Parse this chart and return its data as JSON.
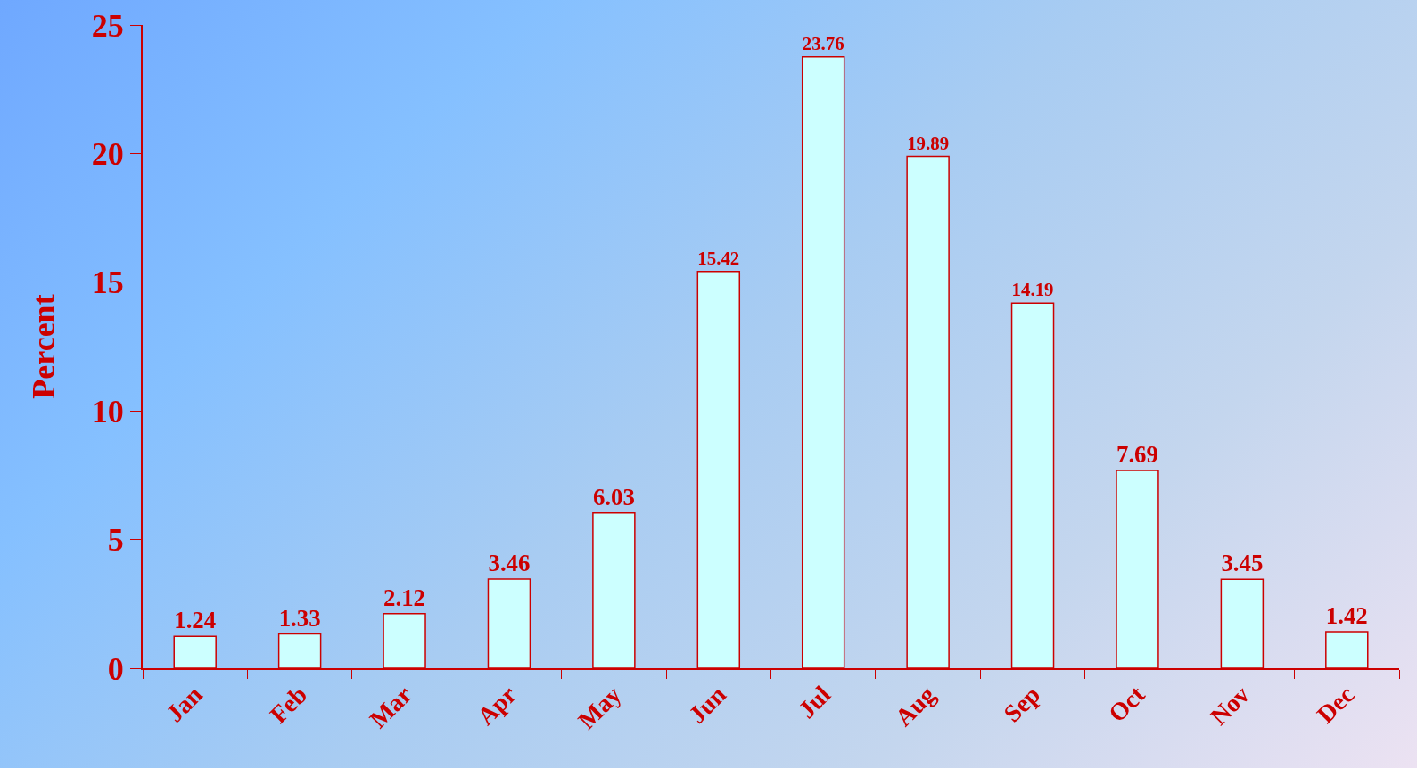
{
  "chart_data": {
    "type": "bar",
    "ylabel": "Percent",
    "categories": [
      "Jan",
      "Feb",
      "Mar",
      "Apr",
      "May",
      "Jun",
      "Jul",
      "Aug",
      "Sep",
      "Oct",
      "Nov",
      "Dec"
    ],
    "values": [
      1.24,
      1.33,
      2.12,
      3.46,
      6.03,
      15.42,
      23.76,
      19.89,
      14.19,
      7.69,
      3.45,
      1.42
    ],
    "color": "#ccffff",
    "ylim": [
      0,
      25
    ],
    "yticks": [
      0,
      5,
      10,
      15,
      20,
      25
    ],
    "data_labels": true,
    "grid": false,
    "legend": false
  }
}
